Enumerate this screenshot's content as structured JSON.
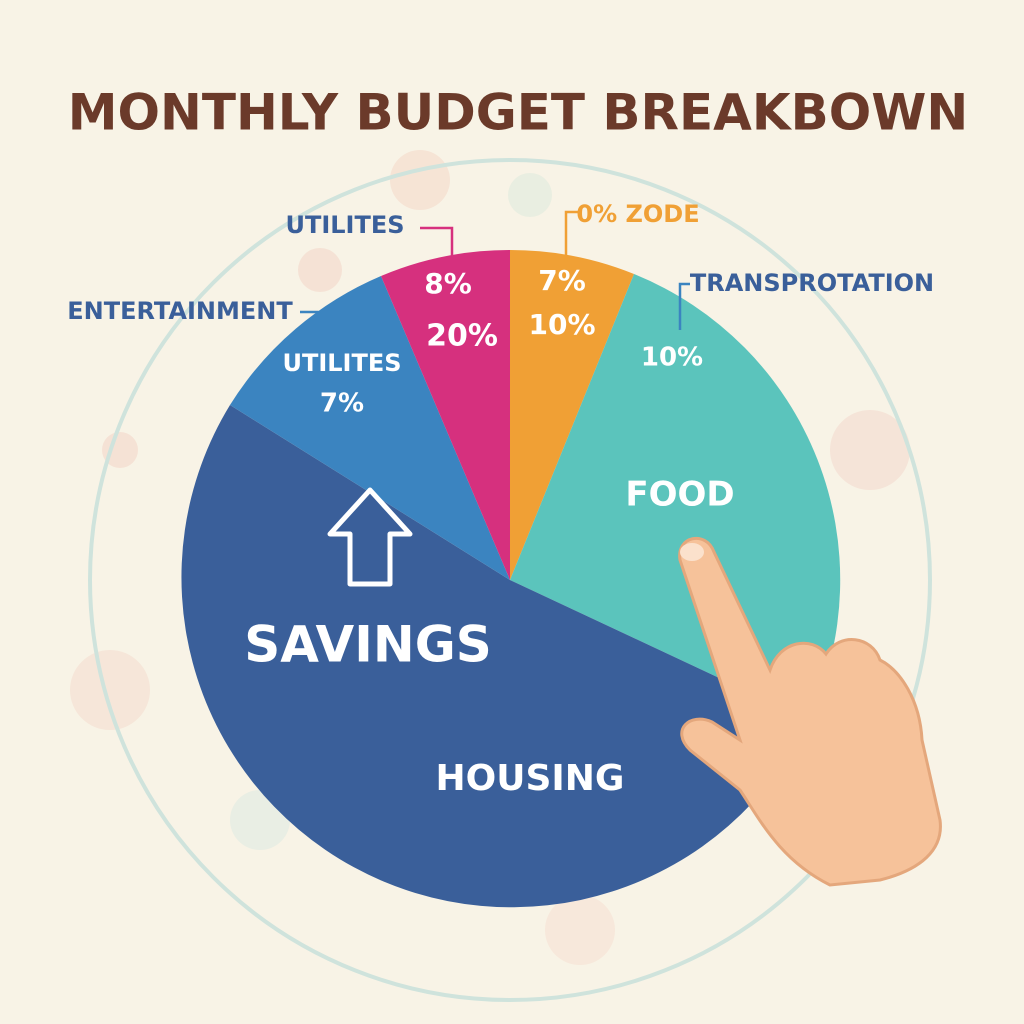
{
  "title": "MONTHLY BUDGET BREAKBOWN",
  "callouts": [
    "UTILITES",
    "ENTERTAINMENT",
    "0% ZODE",
    "TRANSPROTATION"
  ],
  "slice_labels": [
    "8%",
    "20%",
    "7%",
    "10%",
    "UTILITES",
    "7%",
    "10%",
    "FOOD",
    "SAVINGS",
    "HOUSING"
  ]
}
